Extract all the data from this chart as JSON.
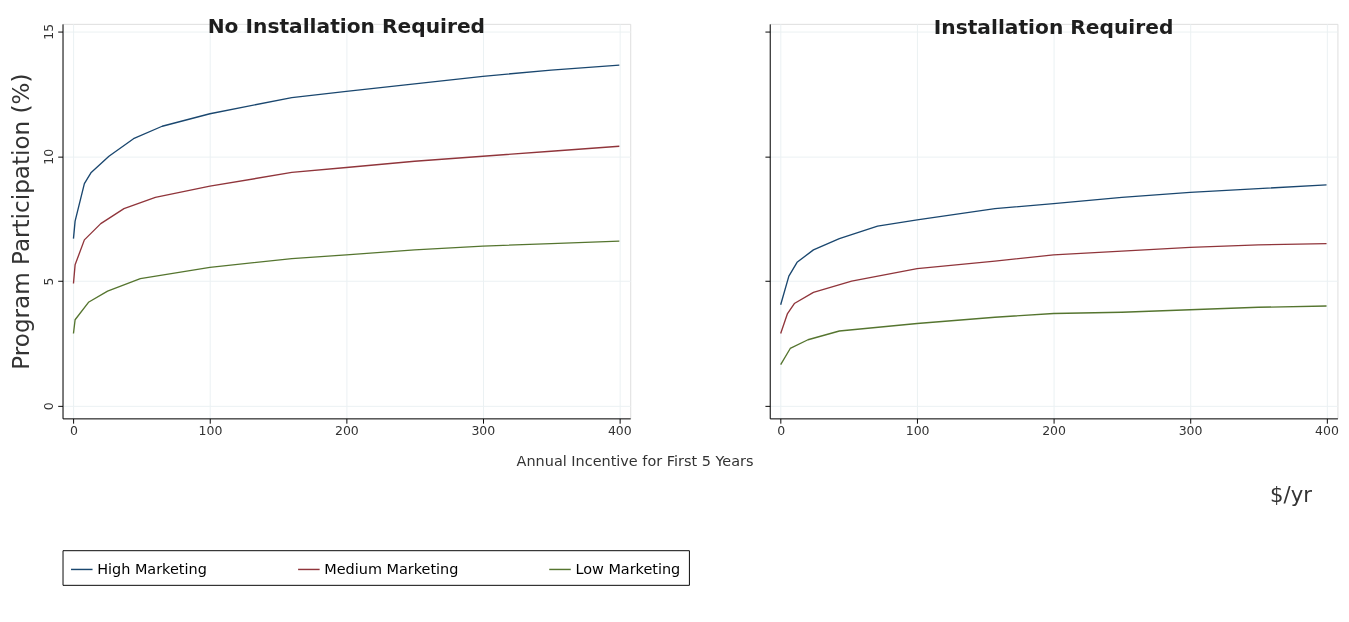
{
  "chart_data": [
    {
      "type": "line",
      "title": "No Installation Required",
      "ylabel": "Program Participation (%)",
      "xlabel": "Annual Incentive for First 5 Years",
      "xlim": [
        -8,
        408
      ],
      "ylim": [
        -0.5,
        15.3
      ],
      "xticks": [
        0,
        100,
        200,
        300,
        400
      ],
      "yticks": [
        0,
        5,
        10,
        15
      ],
      "grid": true,
      "legend": "bottom",
      "line_style": "solid",
      "series": [
        {
          "name": "High Marketing",
          "color": "#1a476f",
          "x": [
            0,
            1.2,
            8,
            13,
            26,
            44,
            65,
            100,
            160,
            200,
            250,
            300,
            350,
            400
          ],
          "values": [
            6.7,
            7.4,
            8.9,
            9.35,
            10.0,
            10.7,
            11.2,
            11.7,
            12.35,
            12.6,
            12.9,
            13.2,
            13.45,
            13.65
          ]
        },
        {
          "name": "Medium Marketing",
          "color": "#90353b",
          "x": [
            0,
            1.2,
            8,
            20,
            37,
            60,
            100,
            160,
            200,
            250,
            300,
            350,
            400
          ],
          "values": [
            4.9,
            5.65,
            6.65,
            7.3,
            7.9,
            8.35,
            8.8,
            9.35,
            9.55,
            9.8,
            10.0,
            10.2,
            10.4
          ]
        },
        {
          "name": "Low Marketing",
          "color": "#55752f",
          "x": [
            0,
            1.2,
            11,
            25,
            49,
            100,
            160,
            200,
            250,
            300,
            350,
            400
          ],
          "values": [
            2.9,
            3.45,
            4.15,
            4.6,
            5.1,
            5.55,
            5.9,
            6.05,
            6.25,
            6.4,
            6.5,
            6.6
          ]
        }
      ]
    },
    {
      "type": "line",
      "title": "Installation Required",
      "xlim": [
        -8,
        408
      ],
      "ylim": [
        -0.5,
        15.3
      ],
      "xticks": [
        0,
        100,
        200,
        300,
        400
      ],
      "yticks": [
        0,
        5,
        10,
        15
      ],
      "grid": true,
      "tick_labels": "x",
      "line_style": "solid",
      "annotations": [
        "$/yr"
      ],
      "series": [
        {
          "name": "High Marketing",
          "color": "#1a476f",
          "x": [
            0,
            6,
            12,
            24,
            43,
            71,
            100,
            157,
            200,
            250,
            300,
            350,
            400
          ],
          "values": [
            4.05,
            5.2,
            5.75,
            6.25,
            6.7,
            7.2,
            7.45,
            7.9,
            8.1,
            8.35,
            8.55,
            8.7,
            8.85
          ]
        },
        {
          "name": "Medium Marketing",
          "color": "#90353b",
          "x": [
            0,
            5,
            10,
            24,
            52,
            100,
            157,
            200,
            250,
            300,
            350,
            400
          ],
          "values": [
            2.9,
            3.7,
            4.1,
            4.55,
            5.0,
            5.5,
            5.8,
            6.05,
            6.2,
            6.35,
            6.45,
            6.5
          ]
        },
        {
          "name": "Low Marketing",
          "color": "#55752f",
          "x": [
            0,
            7,
            20,
            43,
            100,
            157,
            200,
            250,
            300,
            350,
            400
          ],
          "values": [
            1.65,
            2.3,
            2.65,
            3.0,
            3.3,
            3.55,
            3.7,
            3.75,
            3.85,
            3.95,
            4.0
          ]
        }
      ]
    }
  ]
}
